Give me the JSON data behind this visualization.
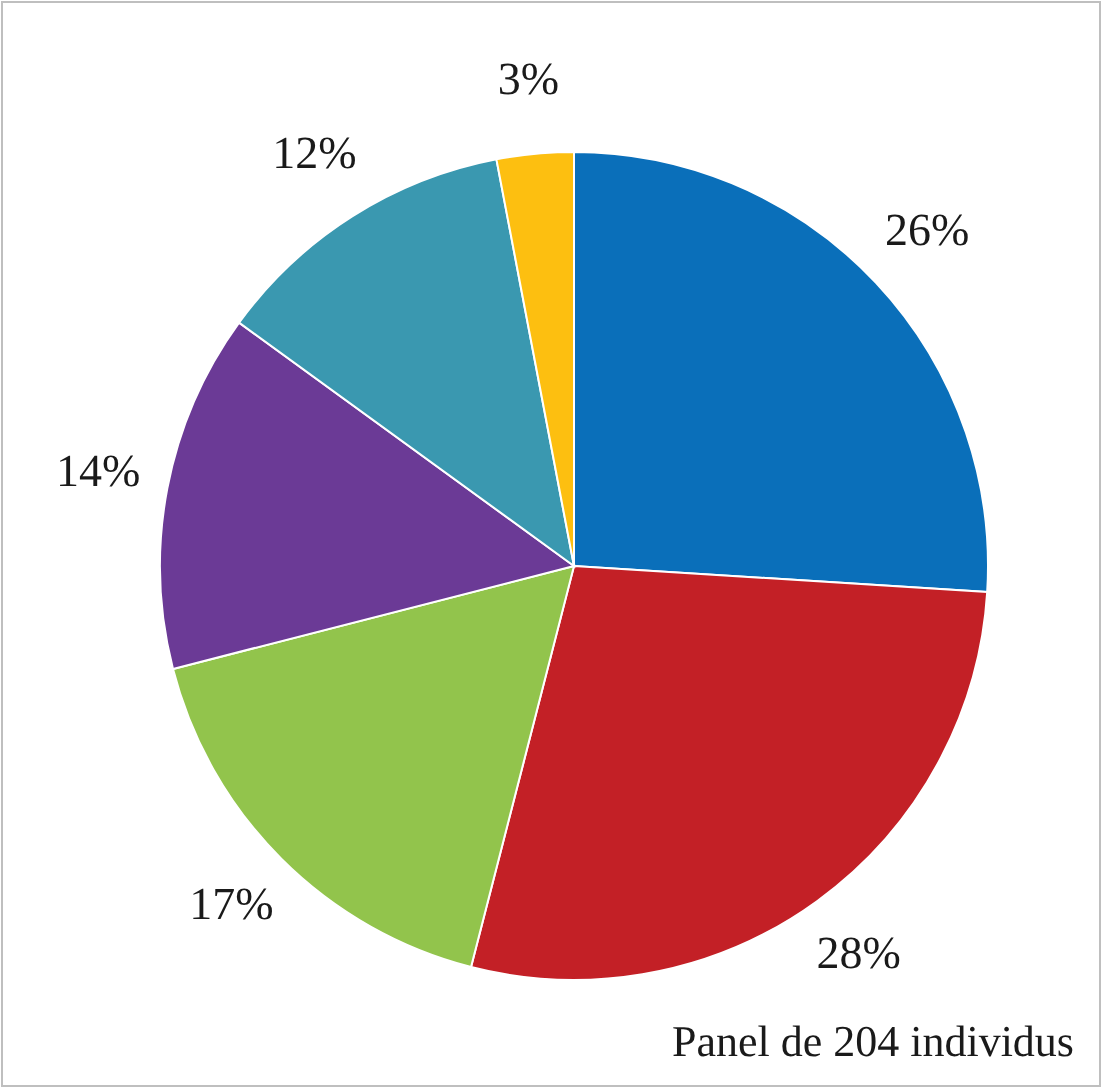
{
  "chart_data": {
    "type": "pie",
    "categories": [
      null,
      null,
      null,
      null,
      null,
      null
    ],
    "values": [
      26,
      28,
      17,
      14,
      12,
      3
    ],
    "colors": [
      "#0a6fba",
      "#c32026",
      "#92c44c",
      "#6b3a96",
      "#3a98b0",
      "#fdbf10"
    ],
    "value_labels": [
      "26%",
      "28%",
      "17%",
      "14%",
      "12%",
      "3%"
    ],
    "annotations": [
      "Panel de 204 individus"
    ]
  }
}
